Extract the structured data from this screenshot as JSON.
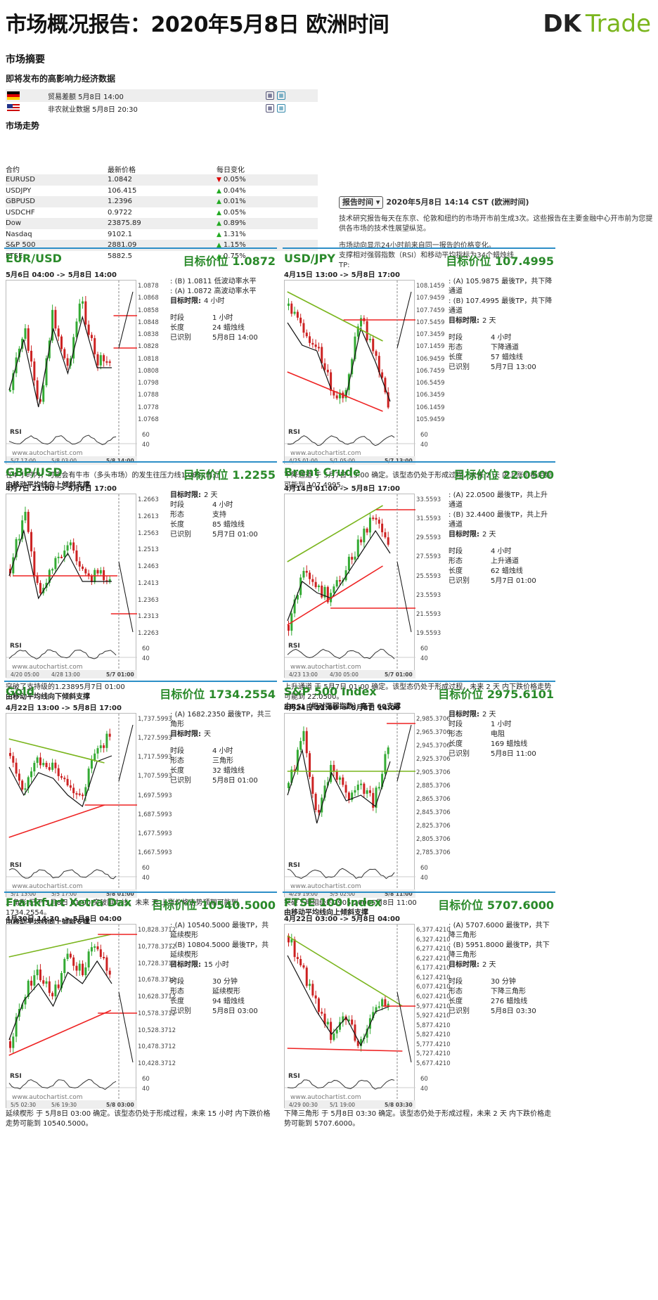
{
  "header": {
    "title": "市场概况报告：2020年5月8日 欧洲时间",
    "logo_dk": "DK",
    "logo_trade": "Trade"
  },
  "summary": {
    "title": "市场摘要",
    "events_title": "即将发布的高影响力经济数据",
    "events": [
      {
        "flag": "de",
        "text": "贸易差额 5月8日 14:00"
      },
      {
        "flag": "us",
        "text": "非农就业数据 5月8日 20:30"
      }
    ]
  },
  "trend": {
    "title": "市场走势",
    "headers": [
      "合约",
      "最新价格",
      "每日变化"
    ],
    "rows": [
      {
        "name": "EURUSD",
        "price": "1.0842",
        "change": "0.05%",
        "dir": "down"
      },
      {
        "name": "USDJPY",
        "price": "106.415",
        "change": "0.04%",
        "dir": "up"
      },
      {
        "name": "GBPUSD",
        "price": "1.2396",
        "change": "0.01%",
        "dir": "up"
      },
      {
        "name": "USDCHF",
        "price": "0.9722",
        "change": "0.05%",
        "dir": "up"
      },
      {
        "name": "Dow",
        "price": "23875.89",
        "change": "0.89%",
        "dir": "up"
      },
      {
        "name": "Nasdaq",
        "price": "9102.1",
        "change": "1.31%",
        "dir": "up"
      },
      {
        "name": "S&P 500",
        "price": "2881.09",
        "change": "1.15%",
        "dir": "up"
      },
      {
        "name": "FTSE",
        "price": "5882.5",
        "change": "0.75%",
        "dir": "up"
      }
    ]
  },
  "report": {
    "button": "报告时间",
    "time": "2020年5月8日 14:14 CST (欧洲时间)",
    "p1": "技术研究报告每天在东京、伦敦和纽约的市场开市前生成3次。这些报告在主要金融中心开市前为您提供各市场的技术性展望纵览。",
    "p2": "市场动向显示24小时前来自同一报告的价格变化。",
    "p3": "支撑相对强弱指数（RSI）和移动平均指标为34个蜡烛线",
    "p4": "TP:"
  },
  "panels": [
    {
      "name": "EUR/USD",
      "target": "目标价位 1.0872",
      "range": "5月6日 04:00 -> 5月8日 14:00",
      "axis": [
        "1.0878",
        "1.0868",
        "1.0858",
        "1.0848",
        "1.0838",
        "1.0828",
        "1.0818",
        "1.0808",
        "1.0798",
        "1.0788",
        "1.0778",
        "1.0768"
      ],
      "rsi": [
        "60",
        "40"
      ],
      "dates": [
        "5/7 17:00",
        "5/8 03:00",
        "5/8 14:00"
      ],
      "info": [
        "(B) 1.0811 低波动率水平",
        "(A) 1.0872 高波动率水平"
      ],
      "kv": [
        [
          "目标时限:",
          "4 小时"
        ],
        [
          "",
          ""
        ],
        [
          "时段",
          "1 小时"
        ],
        [
          "长度",
          "24 蜡烛线"
        ],
        [
          "已识别",
          "5月8日 14:00"
        ]
      ],
      "desc": "在4 小时内，可能会有牛市（多头市场）的发生往压力线1.0872靠近",
      "desc2": "由移动平均线向上倾斜支撑"
    },
    {
      "name": "USD/JPY",
      "target": "目标价位 107.4995",
      "range": "4月15日 13:00 -> 5月8日 17:00",
      "axis": [
        "108.1459",
        "107.9459",
        "107.7459",
        "107.5459",
        "107.3459",
        "107.1459",
        "106.9459",
        "106.7459",
        "106.5459",
        "106.3459",
        "106.1459",
        "105.9459"
      ],
      "rsi": [
        "60",
        "40"
      ],
      "dates": [
        "4/25 01:00",
        "5/1 05:00",
        "5/7 13:00"
      ],
      "info": [
        "(A) 105.9875 最後TP，共下降通道",
        "(B) 107.4995 最後TP，共下降通道"
      ],
      "kv": [
        [
          "目标时限:",
          "2 天"
        ],
        [
          "",
          ""
        ],
        [
          "时段",
          "4 小时"
        ],
        [
          "形态",
          "下降通道"
        ],
        [
          "长度",
          "57 蜡烛线"
        ],
        [
          "已识别",
          "5月7日 13:00"
        ]
      ],
      "desc": "下降通道 于 5月7日 13:00 确定。该型态仍处于形成过程，未来 2 天 内上涨价格走势可能到 107.4995。",
      "desc2": ""
    },
    {
      "name": "GBP/USD",
      "target": "目标价位 1.2255",
      "range": "4月7日 21:00 -> 5月8日 17:00",
      "axis": [
        "1.2663",
        "1.2613",
        "1.2563",
        "1.2513",
        "1.2463",
        "1.2413",
        "1.2363",
        "1.2313",
        "1.2263"
      ],
      "rsi": [
        "60",
        "40"
      ],
      "dates": [
        "4/20 05:00",
        "4/28 13:00",
        "5/7 01:00"
      ],
      "info": [],
      "kv": [
        [
          "目标时限:",
          "2 天"
        ],
        [
          "时段",
          "4 小时"
        ],
        [
          "形态",
          "支持"
        ],
        [
          "长度",
          "85 蜡烛线"
        ],
        [
          "已识别",
          "5月7日 01:00"
        ]
      ],
      "desc": "突破了支持级的1.23895月7日 01:00",
      "desc2": "由移动平均线向下倾斜支撑"
    },
    {
      "name": "Brent Crude",
      "target": "目标价位 22.0500",
      "range": "4月14日 01:00 -> 5月8日 17:00",
      "axis": [
        "33.5593",
        "31.5593",
        "29.5593",
        "27.5593",
        "25.5593",
        "23.5593",
        "21.5593",
        "19.5593"
      ],
      "rsi": [
        "60",
        "40"
      ],
      "dates": [
        "4/23 13:00",
        "4/30 05:00",
        "5/7 01:00"
      ],
      "info": [
        "(A) 22.0500 最後TP，共上升通道",
        "(B) 32.4400 最後TP，共上升通道"
      ],
      "kv": [
        [
          "目标时限:",
          "2 天"
        ],
        [
          "",
          ""
        ],
        [
          "时段",
          "4 小时"
        ],
        [
          "形态",
          "上升通道"
        ],
        [
          "长度",
          "62 蜡烛线"
        ],
        [
          "已识别",
          "5月7日 01:00"
        ]
      ],
      "desc": "上升通道 于 5月7日 01:00 确定。该型态仍处于形成过程，未来 2 天 内下跌价格走势可能到 22.0500。",
      "desc2": "由RSI（相对强弱指数）高于 60支撑"
    },
    {
      "name": "Gold",
      "target": "目标价位 1734.2554",
      "range": "4月22日 13:00 -> 5月8日 17:00",
      "axis": [
        "1,737.5993",
        "1,727.5993",
        "1,717.5993",
        "1,707.5993",
        "1,697.5993",
        "1,687.5993",
        "1,677.5993",
        "1,667.5993"
      ],
      "rsi": [
        "60",
        "40"
      ],
      "dates": [
        "5/1 13:00",
        "5/5 17:00",
        "5/8 01:00"
      ],
      "info": [
        "(A) 1682.2350 最後TP，共三角形"
      ],
      "kv": [
        [
          "目标时限:",
          "天"
        ],
        [
          "",
          ""
        ],
        [
          "时段",
          "4 小时"
        ],
        [
          "形态",
          "三角形"
        ],
        [
          "长度",
          "32 蜡烛线"
        ],
        [
          "已识别",
          "5月8日 01:00"
        ]
      ],
      "desc": "三角形 已于 5月8日 01:00 突破阻力线。未来 天 上涨价格走势预期可能到 1734.2554。",
      "desc2": "由移动平均线向上倾斜支撑"
    },
    {
      "name": "S&P 500 Index",
      "target": "目标价位 2975.6101",
      "range": "4月24日 22:00 -> 5月8日 14:00",
      "axis": [
        "2,985.3706",
        "2,965.3706",
        "2,945.3706",
        "2,925.3706",
        "2,905.3706",
        "2,885.3706",
        "2,865.3706",
        "2,845.3706",
        "2,825.3706",
        "2,805.3706",
        "2,785.3706"
      ],
      "rsi": [
        "60",
        "40"
      ],
      "dates": [
        "4/29 19:00",
        "5/5 02:00",
        "5/8 11:00"
      ],
      "info": [],
      "kv": [
        [
          "目标时限:",
          "2 天"
        ],
        [
          "时段",
          "1 小时"
        ],
        [
          "形态",
          "电阻"
        ],
        [
          "长度",
          "169 蜡烛线"
        ],
        [
          "已识别",
          "5月8日 11:00"
        ]
      ],
      "desc": "突破了电阻级的2905.20005月8日 11:00",
      "desc2": "由移动平均线向上倾斜支撑"
    },
    {
      "name": "Frankfurt Xetra Dax",
      "target": "目标价位 10540.5000",
      "range": "4月30日 14:30 -> 5月8日 04:00",
      "axis": [
        "10,828.3712",
        "10,778.3712",
        "10,728.3712",
        "10,678.3712",
        "10,628.3712",
        "10,578.3712",
        "10,528.3712",
        "10,478.3712",
        "10,428.3712"
      ],
      "rsi": [
        "60",
        "40"
      ],
      "dates": [
        "5/5 02:30",
        "5/6 19:30",
        "5/8 03:00"
      ],
      "info": [
        "(A) 10540.5000 最後TP，共延续楔形",
        "(B) 10804.5000 最後TP，共延续楔形"
      ],
      "kv": [
        [
          "目标时限:",
          "15 小时"
        ],
        [
          "",
          ""
        ],
        [
          "时段",
          "30 分钟"
        ],
        [
          "形态",
          "延续楔形"
        ],
        [
          "长度",
          "94 蜡烛线"
        ],
        [
          "已识别",
          "5月8日 03:00"
        ]
      ],
      "desc": "延续楔形 于 5月8日 03:00 确定。该型态仍处于形成过程，未来 15 小时 内下跌价格走势可能到 10540.5000。",
      "desc2": ""
    },
    {
      "name": "FTSE 100 Index",
      "target": "目标价位 5707.6000",
      "range": "4月22日 03:00 -> 5月8日 04:00",
      "axis": [
        "6,377.4210",
        "6,327.4210",
        "6,277.4210",
        "6,227.4210",
        "6,177.4210",
        "6,127.4210",
        "6,077.4210",
        "6,027.4210",
        "5,977.4210",
        "5,927.4210",
        "5,877.4210",
        "5,827.4210",
        "5,777.4210",
        "5,727.4210",
        "5,677.4210"
      ],
      "rsi": [
        "60",
        "40"
      ],
      "dates": [
        "4/29 00:30",
        "5/1 19:00",
        "5/8 03:30"
      ],
      "info": [
        "(A) 5707.6000 最後TP，共下降三角形",
        "(B) 5951.8000 最後TP，共下降三角形"
      ],
      "kv": [
        [
          "目标时限:",
          "2 天"
        ],
        [
          "",
          ""
        ],
        [
          "时段",
          "30 分钟"
        ],
        [
          "形态",
          "下降三角形"
        ],
        [
          "长度",
          "276 蜡烛线"
        ],
        [
          "已识别",
          "5月8日 03:30"
        ]
      ],
      "desc": "下降三角形 于 5月8日 03:30 确定。该型态仍处于形成过程，未来 2 天 内下跌价格走势可能到 5707.6000。",
      "desc2": ""
    }
  ],
  "watermark": "www.autochartist.com",
  "rsi_label": "RSI",
  "colors": {
    "accent": "#2d8fc7",
    "target_green": "#2a8a2a",
    "candle_up": "#3a3",
    "candle_down": "#c22",
    "trend_line_green": "#7ab51d",
    "trend_line_red": "#e22"
  }
}
